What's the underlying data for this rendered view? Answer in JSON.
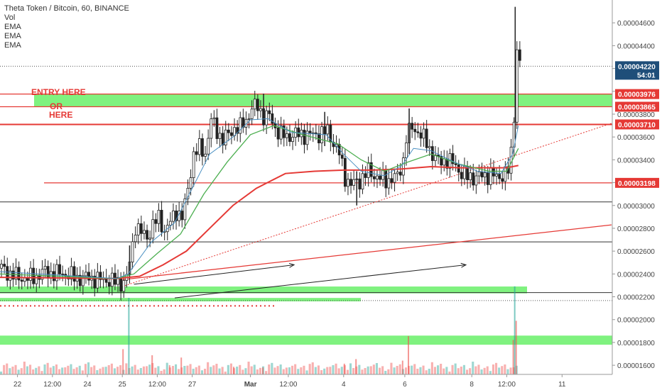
{
  "legend": {
    "title": "Theta Token / Bitcoin, 60, BINANCE",
    "indicators": [
      "Vol",
      "EMA",
      "EMA",
      "EMA"
    ]
  },
  "annotations": {
    "entry": "ENTRY HERE",
    "or": "OR",
    "here": "HERE"
  },
  "colors": {
    "up": "#26a69a",
    "down": "#ef5350",
    "ema_fast": "#4a90c2",
    "ema_mid": "#4caf50",
    "ema_slow": "#e53935",
    "zone": "#7ff27f",
    "level_line": "#e53935",
    "text_red": "#e53935"
  },
  "chart_data": {
    "type": "candlestick",
    "title": "Theta Token / Bitcoin, 60, BINANCE",
    "ylim": [
      1.52e-05,
      4.8e-05
    ],
    "y_ticks": [
      "0.00001600",
      "0.00001800",
      "0.00002000",
      "0.00002200",
      "0.00002400",
      "0.00002600",
      "0.00002800",
      "0.00003000",
      "0.00003200",
      "0.00003400",
      "0.00003600",
      "0.00003800",
      "0.00004000",
      "0.00004200",
      "0.00004400",
      "0.00004600"
    ],
    "x_ticks": [
      {
        "label": "22",
        "bar": 6
      },
      {
        "label": "12:00",
        "bar": 18
      },
      {
        "label": "24",
        "bar": 30
      },
      {
        "label": "25",
        "bar": 42
      },
      {
        "label": "12:00",
        "bar": 54
      },
      {
        "label": "27",
        "bar": 66
      },
      {
        "label": "Mar",
        "bar": 86
      },
      {
        "label": "12:00",
        "bar": 99
      },
      {
        "label": "4",
        "bar": 118
      },
      {
        "label": "6",
        "bar": 139
      },
      {
        "label": "8",
        "bar": 162
      },
      {
        "label": "12:00",
        "bar": 174
      },
      {
        "label": "11",
        "bar": 193
      }
    ],
    "bars_visible": 193,
    "price_label": {
      "value": "0.00004220",
      "countdown": "54:01"
    },
    "level_labels": [
      "0.00003976",
      "0.00003865",
      "0.00003710",
      "0.00003198"
    ],
    "levels": {
      "red_horizontal": [
        3.976e-05,
        3.865e-05,
        3.71e-05,
        3.198e-05
      ],
      "black_horizontal": [
        3.031e-05,
        2.681e-05,
        2.237e-05
      ],
      "black_dotted": [
        4.22e-05,
        2.167e-05
      ],
      "red_dotted_short": [
        2.12e-05
      ],
      "green_zones": [
        [
          3.865e-05,
          3.976e-05
        ],
        [
          2.23e-05,
          2.29e-05
        ],
        [
          2.16e-05,
          2.19e-05
        ],
        [
          1.78e-05,
          1.86e-05
        ]
      ]
    },
    "trendlines": [
      {
        "style": "dotted-red",
        "from": [
          42,
          2.29e-05
        ],
        "to": [
          210,
          3.72e-05
        ]
      },
      {
        "style": "solid-red",
        "from": [
          42,
          2.35e-05
        ],
        "to": [
          210,
          2.83e-05
        ]
      },
      {
        "style": "solid-black-arrow",
        "from": [
          46,
          2.31e-05
        ],
        "to": [
          101,
          2.48e-05
        ]
      },
      {
        "style": "solid-black-arrow",
        "from": [
          60,
          2.19e-05
        ],
        "to": [
          160,
          2.48e-05
        ]
      }
    ],
    "close_path": [
      [
        0,
        2.45e-05
      ],
      [
        3,
        2.4e-05
      ],
      [
        6,
        2.37e-05
      ],
      [
        9,
        2.36e-05
      ],
      [
        12,
        2.38e-05
      ],
      [
        15,
        2.42e-05
      ],
      [
        18,
        2.4e-05
      ],
      [
        21,
        2.41e-05
      ],
      [
        24,
        2.38e-05
      ],
      [
        27,
        2.36e-05
      ],
      [
        30,
        2.37e-05
      ],
      [
        33,
        2.35e-05
      ],
      [
        36,
        2.35e-05
      ],
      [
        39,
        2.33e-05
      ],
      [
        41,
        2.32e-05
      ],
      [
        43,
        2.36e-05
      ],
      [
        45,
        2.65e-05
      ],
      [
        46,
        2.83e-05
      ],
      [
        48,
        2.76e-05
      ],
      [
        50,
        2.72e-05
      ],
      [
        52,
        2.83e-05
      ],
      [
        54,
        2.89e-05
      ],
      [
        56,
        2.78e-05
      ],
      [
        58,
        2.85e-05
      ],
      [
        60,
        2.95e-05
      ],
      [
        62,
        2.9e-05
      ],
      [
        63,
        3e-05
      ],
      [
        65,
        3.3e-05
      ],
      [
        66,
        3.45e-05
      ],
      [
        68,
        3.5e-05
      ],
      [
        70,
        3.46e-05
      ],
      [
        72,
        3.75e-05
      ],
      [
        74,
        3.65e-05
      ],
      [
        76,
        3.58e-05
      ],
      [
        78,
        3.62e-05
      ],
      [
        80,
        3.68e-05
      ],
      [
        82,
        3.68e-05
      ],
      [
        84,
        3.75e-05
      ],
      [
        86,
        3.85e-05
      ],
      [
        88,
        3.87e-05
      ],
      [
        90,
        3.78e-05
      ],
      [
        92,
        3.78e-05
      ],
      [
        94,
        3.68e-05
      ],
      [
        96,
        3.62e-05
      ],
      [
        98,
        3.6e-05
      ],
      [
        100,
        3.62e-05
      ],
      [
        104,
        3.62e-05
      ],
      [
        108,
        3.62e-05
      ],
      [
        112,
        3.65e-05
      ],
      [
        114,
        3.55e-05
      ],
      [
        116,
        3.45e-05
      ],
      [
        118,
        3.25e-05
      ],
      [
        120,
        3.18e-05
      ],
      [
        123,
        3.22e-05
      ],
      [
        126,
        3.3e-05
      ],
      [
        129,
        3.25e-05
      ],
      [
        132,
        3.22e-05
      ],
      [
        136,
        3.25e-05
      ],
      [
        138,
        3.4e-05
      ],
      [
        139,
        3.6e-05
      ],
      [
        141,
        3.68e-05
      ],
      [
        143,
        3.65e-05
      ],
      [
        146,
        3.55e-05
      ],
      [
        148,
        3.45e-05
      ],
      [
        150,
        3.38e-05
      ],
      [
        153,
        3.4e-05
      ],
      [
        156,
        3.35e-05
      ],
      [
        158,
        3.28e-05
      ],
      [
        160,
        3.25e-05
      ],
      [
        163,
        3.25e-05
      ],
      [
        166,
        3.26e-05
      ],
      [
        168,
        3.28e-05
      ],
      [
        170,
        3.24e-05
      ],
      [
        172,
        3.27e-05
      ],
      [
        174,
        3.3e-05
      ],
      [
        175,
        3.45e-05
      ],
      [
        176,
        3.8e-05
      ],
      [
        176.5,
        4.47e-05
      ],
      [
        177,
        4.37e-05
      ],
      [
        178,
        4.25e-05
      ]
    ],
    "spikes": [
      [
        44,
        2.37e-05,
        2.65e-05
      ],
      [
        176.4,
        3.58e-05,
        4.74e-05
      ],
      [
        122,
        3e-05,
        3.3e-05
      ],
      [
        140,
        3.45e-05,
        3.85e-05
      ],
      [
        90,
        3.7e-05,
        3.98e-05
      ],
      [
        111,
        3.52e-05,
        3.82e-05
      ]
    ],
    "ema_fast_path": [
      [
        0,
        2.42e-05
      ],
      [
        40,
        2.36e-05
      ],
      [
        44,
        2.4e-05
      ],
      [
        52,
        2.68e-05
      ],
      [
        60,
        2.85e-05
      ],
      [
        66,
        3.15e-05
      ],
      [
        72,
        3.45e-05
      ],
      [
        80,
        3.6e-05
      ],
      [
        86,
        3.75e-05
      ],
      [
        92,
        3.76e-05
      ],
      [
        100,
        3.64e-05
      ],
      [
        112,
        3.62e-05
      ],
      [
        118,
        3.45e-05
      ],
      [
        124,
        3.3e-05
      ],
      [
        132,
        3.26e-05
      ],
      [
        138,
        3.35e-05
      ],
      [
        142,
        3.5e-05
      ],
      [
        148,
        3.48e-05
      ],
      [
        156,
        3.38e-05
      ],
      [
        164,
        3.3e-05
      ],
      [
        172,
        3.28e-05
      ],
      [
        176,
        3.45e-05
      ],
      [
        178,
        3.7e-05
      ]
    ],
    "ema_mid_path": [
      [
        0,
        2.4e-05
      ],
      [
        40,
        2.36e-05
      ],
      [
        46,
        2.4e-05
      ],
      [
        54,
        2.58e-05
      ],
      [
        62,
        2.75e-05
      ],
      [
        70,
        3.1e-05
      ],
      [
        78,
        3.38e-05
      ],
      [
        86,
        3.62e-05
      ],
      [
        94,
        3.7e-05
      ],
      [
        104,
        3.62e-05
      ],
      [
        116,
        3.54e-05
      ],
      [
        124,
        3.4e-05
      ],
      [
        132,
        3.3e-05
      ],
      [
        140,
        3.38e-05
      ],
      [
        148,
        3.45e-05
      ],
      [
        158,
        3.36e-05
      ],
      [
        168,
        3.3e-05
      ],
      [
        174,
        3.3e-05
      ],
      [
        178,
        3.5e-05
      ]
    ],
    "ema_slow_path": [
      [
        0,
        2.37e-05
      ],
      [
        40,
        2.36e-05
      ],
      [
        48,
        2.38e-05
      ],
      [
        56,
        2.48e-05
      ],
      [
        64,
        2.6e-05
      ],
      [
        72,
        2.8e-05
      ],
      [
        80,
        3e-05
      ],
      [
        88,
        3.15e-05
      ],
      [
        98,
        3.28e-05
      ],
      [
        108,
        3.3e-05
      ],
      [
        118,
        3.31e-05
      ],
      [
        128,
        3.31e-05
      ],
      [
        138,
        3.32e-05
      ],
      [
        148,
        3.34e-05
      ],
      [
        158,
        3.33e-05
      ],
      [
        168,
        3.33e-05
      ],
      [
        174,
        3.33e-05
      ],
      [
        178,
        3.35e-05
      ]
    ],
    "volume_spikes": [
      [
        42,
        0.33
      ],
      [
        44,
        1.0
      ],
      [
        52,
        0.25
      ],
      [
        58,
        0.12
      ],
      [
        62,
        0.22
      ],
      [
        80,
        0.1
      ],
      [
        90,
        0.09
      ],
      [
        118,
        0.14
      ],
      [
        122,
        0.2
      ],
      [
        138,
        0.18
      ],
      [
        140,
        0.5
      ],
      [
        176,
        0.45
      ],
      [
        176.5,
        1.15
      ],
      [
        177,
        0.7
      ]
    ]
  }
}
